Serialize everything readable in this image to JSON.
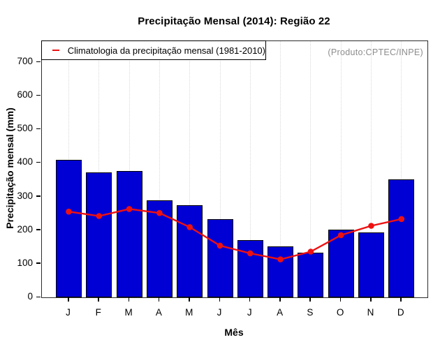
{
  "header": {
    "title": "Precipitação Mensal (2014): Região 22"
  },
  "annotations": {
    "watermark": "(Produto:CPTEC/INPE)"
  },
  "legend": {
    "position": "top-left",
    "items": [
      {
        "label": "Climatologia da precipitação mensal (1981-2010)",
        "symbol": "red-line",
        "color": "#ee1111"
      }
    ]
  },
  "colors": {
    "bar_fill": "#0000d5",
    "bar_border": "#000000",
    "climatology_line": "#ee1111",
    "gridline": "#d9d9d9",
    "watermark_text": "#8c8c8c",
    "axis_text": "#000000"
  },
  "chart_data": {
    "type": "bar",
    "title": "Precipitação Mensal (2014): Região 22",
    "xlabel": "Mês",
    "ylabel": "Precipitação mensal (mm)",
    "categories": [
      "J",
      "F",
      "M",
      "A",
      "M",
      "J",
      "J",
      "A",
      "S",
      "O",
      "N",
      "D"
    ],
    "series": [
      {
        "name": "2014",
        "type": "bar",
        "color": "#0000d5",
        "values": [
          409,
          371,
          375,
          289,
          274,
          232,
          171,
          152,
          133,
          202,
          194,
          352
        ]
      },
      {
        "name": "Climatologia da precipitação mensal (1981-2010)",
        "type": "line",
        "color": "#ee1111",
        "values": [
          255,
          242,
          263,
          251,
          209,
          154,
          131,
          113,
          136,
          185,
          213,
          233
        ]
      }
    ],
    "ylim": [
      0,
      762
    ],
    "yticks": [
      0,
      100,
      200,
      300,
      400,
      500,
      600,
      700
    ],
    "grid": "vertical-dotted-per-month",
    "legend_position": "top-left"
  }
}
